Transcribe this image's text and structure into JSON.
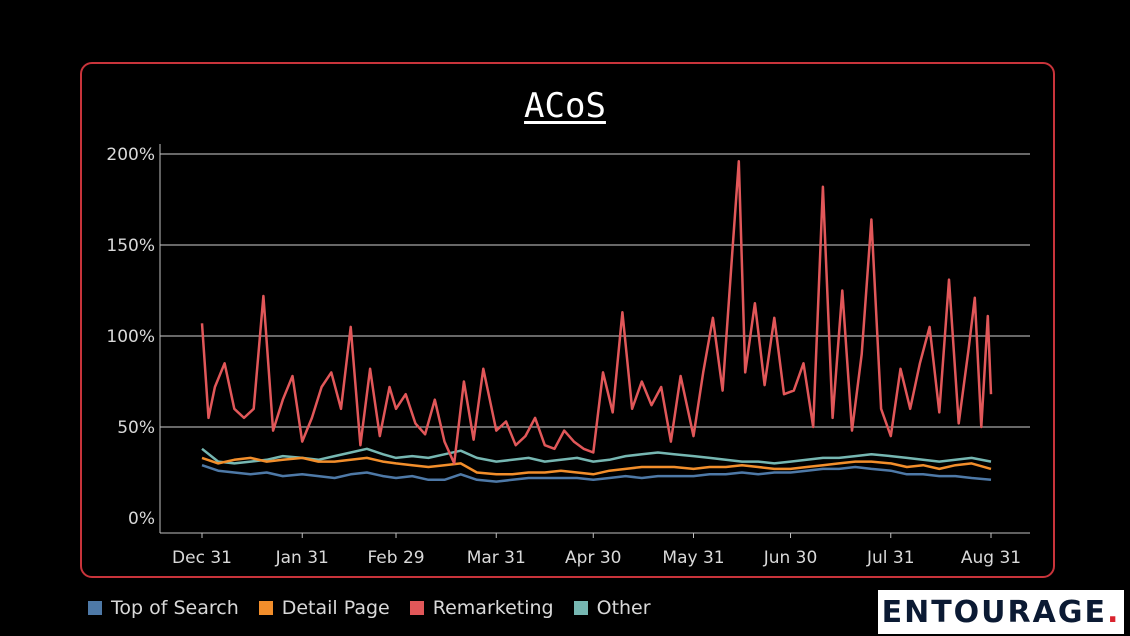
{
  "chart_data": {
    "type": "line",
    "title": "ACoS",
    "xlabel": "",
    "ylabel": "",
    "ylim": [
      0,
      200
    ],
    "yticks": [
      0,
      50,
      100,
      150,
      200
    ],
    "ytick_labels": [
      "0%",
      "50%",
      "100%",
      "150%",
      "200%"
    ],
    "x_start": "2023-12-31",
    "x_end": "2024-08-31",
    "xticks": [
      "2023-12-31",
      "2024-01-31",
      "2024-02-29",
      "2024-03-31",
      "2024-04-30",
      "2024-05-31",
      "2024-06-30",
      "2024-07-31",
      "2024-08-31"
    ],
    "xtick_labels": [
      "Dec 31",
      "Jan 31",
      "Feb 29",
      "Mar 31",
      "Apr 30",
      "May 31",
      "Jun 30",
      "Jul 31",
      "Aug 31"
    ],
    "grid": "horizontal",
    "legend_position": "bottom-left",
    "series": [
      {
        "name": "Top of Search",
        "color": "#4e79a7",
        "points": [
          [
            "2023-12-31",
            29
          ],
          [
            "2024-01-05",
            26
          ],
          [
            "2024-01-10",
            25
          ],
          [
            "2024-01-15",
            24
          ],
          [
            "2024-01-20",
            25
          ],
          [
            "2024-01-25",
            23
          ],
          [
            "2024-01-31",
            24
          ],
          [
            "2024-02-05",
            23
          ],
          [
            "2024-02-10",
            22
          ],
          [
            "2024-02-15",
            24
          ],
          [
            "2024-02-20",
            25
          ],
          [
            "2024-02-25",
            23
          ],
          [
            "2024-02-29",
            22
          ],
          [
            "2024-03-05",
            23
          ],
          [
            "2024-03-10",
            21
          ],
          [
            "2024-03-15",
            21
          ],
          [
            "2024-03-20",
            24
          ],
          [
            "2024-03-25",
            21
          ],
          [
            "2024-03-31",
            20
          ],
          [
            "2024-04-05",
            21
          ],
          [
            "2024-04-10",
            22
          ],
          [
            "2024-04-15",
            22
          ],
          [
            "2024-04-20",
            22
          ],
          [
            "2024-04-25",
            22
          ],
          [
            "2024-04-30",
            21
          ],
          [
            "2024-05-05",
            22
          ],
          [
            "2024-05-10",
            23
          ],
          [
            "2024-05-15",
            22
          ],
          [
            "2024-05-20",
            23
          ],
          [
            "2024-05-25",
            23
          ],
          [
            "2024-05-31",
            23
          ],
          [
            "2024-06-05",
            24
          ],
          [
            "2024-06-10",
            24
          ],
          [
            "2024-06-15",
            25
          ],
          [
            "2024-06-20",
            24
          ],
          [
            "2024-06-25",
            25
          ],
          [
            "2024-06-30",
            25
          ],
          [
            "2024-07-05",
            26
          ],
          [
            "2024-07-10",
            27
          ],
          [
            "2024-07-15",
            27
          ],
          [
            "2024-07-20",
            28
          ],
          [
            "2024-07-25",
            27
          ],
          [
            "2024-07-31",
            26
          ],
          [
            "2024-08-05",
            24
          ],
          [
            "2024-08-10",
            24
          ],
          [
            "2024-08-15",
            23
          ],
          [
            "2024-08-20",
            23
          ],
          [
            "2024-08-25",
            22
          ],
          [
            "2024-08-31",
            21
          ]
        ]
      },
      {
        "name": "Detail Page",
        "color": "#f28e2b",
        "points": [
          [
            "2023-12-31",
            33
          ],
          [
            "2024-01-05",
            30
          ],
          [
            "2024-01-10",
            32
          ],
          [
            "2024-01-15",
            33
          ],
          [
            "2024-01-20",
            31
          ],
          [
            "2024-01-25",
            32
          ],
          [
            "2024-01-31",
            33
          ],
          [
            "2024-02-05",
            31
          ],
          [
            "2024-02-10",
            31
          ],
          [
            "2024-02-15",
            32
          ],
          [
            "2024-02-20",
            33
          ],
          [
            "2024-02-25",
            31
          ],
          [
            "2024-02-29",
            30
          ],
          [
            "2024-03-05",
            29
          ],
          [
            "2024-03-10",
            28
          ],
          [
            "2024-03-15",
            29
          ],
          [
            "2024-03-20",
            30
          ],
          [
            "2024-03-25",
            25
          ],
          [
            "2024-03-31",
            24
          ],
          [
            "2024-04-05",
            24
          ],
          [
            "2024-04-10",
            25
          ],
          [
            "2024-04-15",
            25
          ],
          [
            "2024-04-20",
            26
          ],
          [
            "2024-04-25",
            25
          ],
          [
            "2024-04-30",
            24
          ],
          [
            "2024-05-05",
            26
          ],
          [
            "2024-05-10",
            27
          ],
          [
            "2024-05-15",
            28
          ],
          [
            "2024-05-20",
            28
          ],
          [
            "2024-05-25",
            28
          ],
          [
            "2024-05-31",
            27
          ],
          [
            "2024-06-05",
            28
          ],
          [
            "2024-06-10",
            28
          ],
          [
            "2024-06-15",
            29
          ],
          [
            "2024-06-20",
            28
          ],
          [
            "2024-06-25",
            27
          ],
          [
            "2024-06-30",
            27
          ],
          [
            "2024-07-05",
            28
          ],
          [
            "2024-07-10",
            29
          ],
          [
            "2024-07-15",
            30
          ],
          [
            "2024-07-20",
            31
          ],
          [
            "2024-07-25",
            31
          ],
          [
            "2024-07-31",
            30
          ],
          [
            "2024-08-05",
            28
          ],
          [
            "2024-08-10",
            29
          ],
          [
            "2024-08-15",
            27
          ],
          [
            "2024-08-20",
            29
          ],
          [
            "2024-08-25",
            30
          ],
          [
            "2024-08-31",
            27
          ]
        ]
      },
      {
        "name": "Remarketing",
        "color": "#e15759",
        "points": [
          [
            "2023-12-31",
            107
          ],
          [
            "2024-01-02",
            55
          ],
          [
            "2024-01-04",
            72
          ],
          [
            "2024-01-07",
            85
          ],
          [
            "2024-01-10",
            60
          ],
          [
            "2024-01-13",
            55
          ],
          [
            "2024-01-16",
            60
          ],
          [
            "2024-01-19",
            122
          ],
          [
            "2024-01-22",
            48
          ],
          [
            "2024-01-25",
            65
          ],
          [
            "2024-01-28",
            78
          ],
          [
            "2024-01-31",
            42
          ],
          [
            "2024-02-03",
            55
          ],
          [
            "2024-02-06",
            72
          ],
          [
            "2024-02-09",
            80
          ],
          [
            "2024-02-12",
            60
          ],
          [
            "2024-02-15",
            105
          ],
          [
            "2024-02-18",
            40
          ],
          [
            "2024-02-21",
            82
          ],
          [
            "2024-02-24",
            45
          ],
          [
            "2024-02-27",
            72
          ],
          [
            "2024-02-29",
            60
          ],
          [
            "2024-03-03",
            68
          ],
          [
            "2024-03-06",
            52
          ],
          [
            "2024-03-09",
            46
          ],
          [
            "2024-03-12",
            65
          ],
          [
            "2024-03-15",
            42
          ],
          [
            "2024-03-18",
            30
          ],
          [
            "2024-03-21",
            75
          ],
          [
            "2024-03-24",
            43
          ],
          [
            "2024-03-27",
            82
          ],
          [
            "2024-03-31",
            48
          ],
          [
            "2024-04-03",
            53
          ],
          [
            "2024-04-06",
            40
          ],
          [
            "2024-04-09",
            45
          ],
          [
            "2024-04-12",
            55
          ],
          [
            "2024-04-15",
            40
          ],
          [
            "2024-04-18",
            38
          ],
          [
            "2024-04-21",
            48
          ],
          [
            "2024-04-24",
            42
          ],
          [
            "2024-04-27",
            38
          ],
          [
            "2024-04-30",
            36
          ],
          [
            "2024-05-03",
            80
          ],
          [
            "2024-05-06",
            58
          ],
          [
            "2024-05-09",
            113
          ],
          [
            "2024-05-12",
            60
          ],
          [
            "2024-05-15",
            75
          ],
          [
            "2024-05-18",
            62
          ],
          [
            "2024-05-21",
            72
          ],
          [
            "2024-05-24",
            42
          ],
          [
            "2024-05-27",
            78
          ],
          [
            "2024-05-31",
            45
          ],
          [
            "2024-06-03",
            80
          ],
          [
            "2024-06-06",
            110
          ],
          [
            "2024-06-09",
            70
          ],
          [
            "2024-06-12",
            146
          ],
          [
            "2024-06-14",
            196
          ],
          [
            "2024-06-16",
            80
          ],
          [
            "2024-06-19",
            118
          ],
          [
            "2024-06-22",
            73
          ],
          [
            "2024-06-25",
            110
          ],
          [
            "2024-06-28",
            68
          ],
          [
            "2024-07-01",
            70
          ],
          [
            "2024-07-04",
            85
          ],
          [
            "2024-07-07",
            50
          ],
          [
            "2024-07-10",
            182
          ],
          [
            "2024-07-13",
            55
          ],
          [
            "2024-07-16",
            125
          ],
          [
            "2024-07-19",
            48
          ],
          [
            "2024-07-22",
            90
          ],
          [
            "2024-07-25",
            164
          ],
          [
            "2024-07-28",
            60
          ],
          [
            "2024-07-31",
            45
          ],
          [
            "2024-08-03",
            82
          ],
          [
            "2024-08-06",
            60
          ],
          [
            "2024-08-09",
            85
          ],
          [
            "2024-08-12",
            105
          ],
          [
            "2024-08-15",
            58
          ],
          [
            "2024-08-18",
            131
          ],
          [
            "2024-08-21",
            52
          ],
          [
            "2024-08-24",
            92
          ],
          [
            "2024-08-26",
            121
          ],
          [
            "2024-08-28",
            50
          ],
          [
            "2024-08-30",
            111
          ],
          [
            "2024-08-31",
            68
          ]
        ]
      },
      {
        "name": "Other",
        "color": "#76b7b2",
        "points": [
          [
            "2023-12-31",
            38
          ],
          [
            "2024-01-05",
            31
          ],
          [
            "2024-01-10",
            30
          ],
          [
            "2024-01-15",
            31
          ],
          [
            "2024-01-20",
            32
          ],
          [
            "2024-01-25",
            34
          ],
          [
            "2024-01-31",
            33
          ],
          [
            "2024-02-05",
            32
          ],
          [
            "2024-02-10",
            34
          ],
          [
            "2024-02-15",
            36
          ],
          [
            "2024-02-20",
            38
          ],
          [
            "2024-02-25",
            35
          ],
          [
            "2024-02-29",
            33
          ],
          [
            "2024-03-05",
            34
          ],
          [
            "2024-03-10",
            33
          ],
          [
            "2024-03-15",
            35
          ],
          [
            "2024-03-20",
            37
          ],
          [
            "2024-03-25",
            33
          ],
          [
            "2024-03-31",
            31
          ],
          [
            "2024-04-05",
            32
          ],
          [
            "2024-04-10",
            33
          ],
          [
            "2024-04-15",
            31
          ],
          [
            "2024-04-20",
            32
          ],
          [
            "2024-04-25",
            33
          ],
          [
            "2024-04-30",
            31
          ],
          [
            "2024-05-05",
            32
          ],
          [
            "2024-05-10",
            34
          ],
          [
            "2024-05-15",
            35
          ],
          [
            "2024-05-20",
            36
          ],
          [
            "2024-05-25",
            35
          ],
          [
            "2024-05-31",
            34
          ],
          [
            "2024-06-05",
            33
          ],
          [
            "2024-06-10",
            32
          ],
          [
            "2024-06-15",
            31
          ],
          [
            "2024-06-20",
            31
          ],
          [
            "2024-06-25",
            30
          ],
          [
            "2024-06-30",
            31
          ],
          [
            "2024-07-05",
            32
          ],
          [
            "2024-07-10",
            33
          ],
          [
            "2024-07-15",
            33
          ],
          [
            "2024-07-20",
            34
          ],
          [
            "2024-07-25",
            35
          ],
          [
            "2024-07-31",
            34
          ],
          [
            "2024-08-05",
            33
          ],
          [
            "2024-08-10",
            32
          ],
          [
            "2024-08-15",
            31
          ],
          [
            "2024-08-20",
            32
          ],
          [
            "2024-08-25",
            33
          ],
          [
            "2024-08-31",
            31
          ]
        ]
      }
    ]
  },
  "brand": {
    "logo_text": "ENTOURAGE",
    "logo_dot": "."
  }
}
